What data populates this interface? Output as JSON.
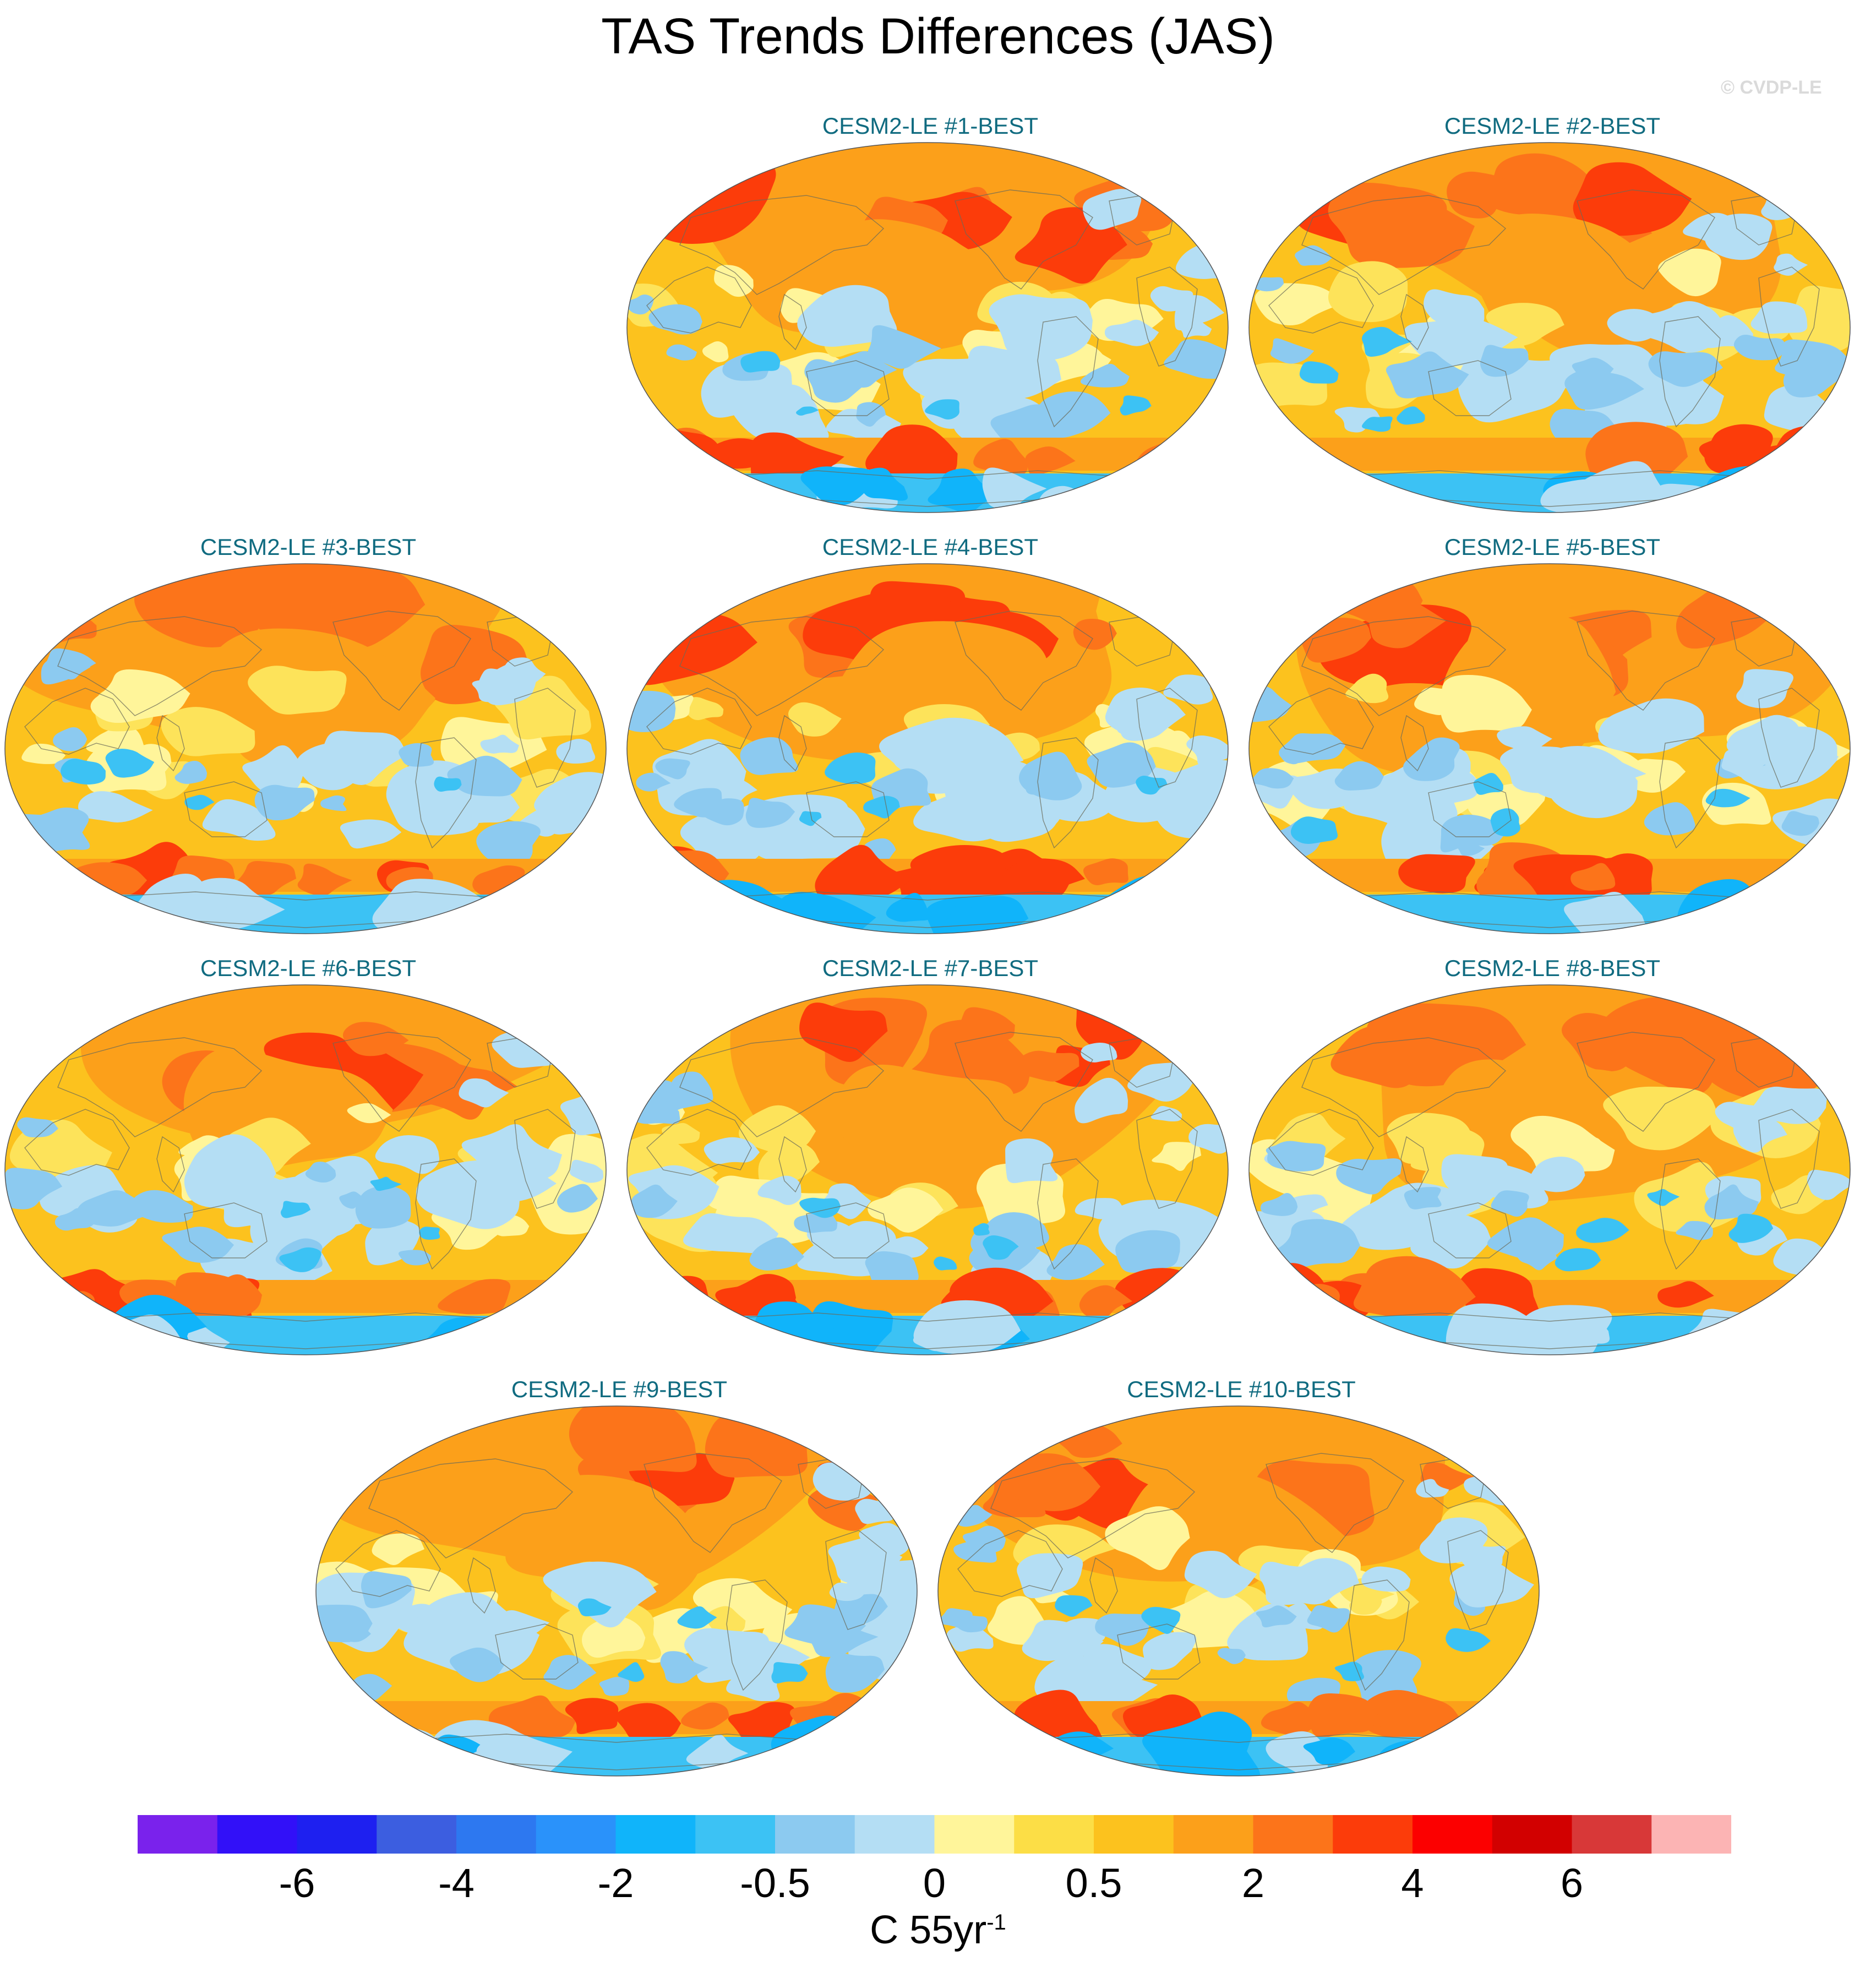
{
  "figure": {
    "title": "TAS Trends Differences (JAS)",
    "copyright": "© CVDP-LE"
  },
  "panels": [
    {
      "id": 1,
      "title": "CESM2-LE #1-BEST"
    },
    {
      "id": 2,
      "title": "CESM2-LE #2-BEST"
    },
    {
      "id": 3,
      "title": "CESM2-LE #3-BEST"
    },
    {
      "id": 4,
      "title": "CESM2-LE #4-BEST"
    },
    {
      "id": 5,
      "title": "CESM2-LE #5-BEST"
    },
    {
      "id": 6,
      "title": "CESM2-LE #6-BEST"
    },
    {
      "id": 7,
      "title": "CESM2-LE #7-BEST"
    },
    {
      "id": 8,
      "title": "CESM2-LE #8-BEST"
    },
    {
      "id": 9,
      "title": "CESM2-LE #9-BEST"
    },
    {
      "id": 10,
      "title": "CESM2-LE #10-BEST"
    }
  ],
  "colorbar": {
    "colors": [
      "#7a22ec",
      "#3210f8",
      "#1e20f0",
      "#3c5ee0",
      "#2d78f0",
      "#2a92fa",
      "#10b4fa",
      "#3cc2f4",
      "#8ccaf0",
      "#b4def4",
      "#fff59a",
      "#fcde46",
      "#fcc21e",
      "#fca01a",
      "#fc741a",
      "#fc3c0a",
      "#fc0000",
      "#d20000",
      "#d83838",
      "#fcb4b4"
    ],
    "ticks": [
      "-6",
      "-4",
      "-2",
      "-0.5",
      "0",
      "0.5",
      "2",
      "4",
      "6"
    ],
    "tick_boundary_index": [
      2,
      4,
      6,
      8,
      10,
      12,
      14,
      16,
      18
    ],
    "units_main": "C 55yr",
    "units_sup": "-1"
  },
  "map_palette": {
    "ocean_base": "#fcc21e",
    "warm_light": "#fde35a",
    "warm_orange": "#fca01a",
    "warm_deep": "#fc741a",
    "warm_hot": "#fc3c0a",
    "cool_pale": "#b4def4",
    "cool_light": "#8ccaf0",
    "cool_mid": "#3cc2f4",
    "cool_deep": "#10b4fa",
    "pale_yellow": "#fff59a",
    "coast": "#6b6b5a"
  }
}
